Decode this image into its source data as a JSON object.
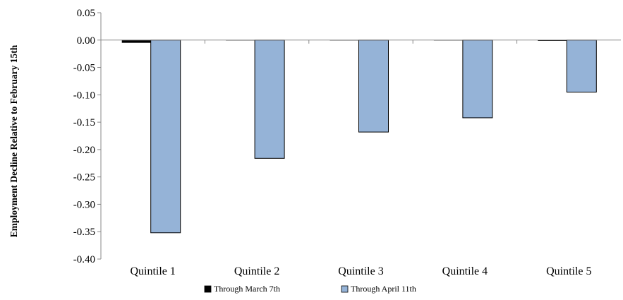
{
  "chart_data": {
    "type": "bar",
    "title": "",
    "xlabel": "",
    "ylabel": "Employment Decline  Relative to February 15th",
    "categories": [
      "Quintile 1",
      "Quintile 2",
      "Quintile 3",
      "Quintile 4",
      "Quintile 5"
    ],
    "series": [
      {
        "name": "Through March 7th",
        "values": [
          -0.005,
          0.0,
          0.0,
          0.0,
          -0.001
        ],
        "color": "#000000"
      },
      {
        "name": "Through April 11th",
        "values": [
          -0.352,
          -0.216,
          -0.168,
          -0.142,
          -0.095
        ],
        "color": "#95b3d7"
      }
    ],
    "ylim": [
      -0.4,
      0.05
    ],
    "yticks": [
      "0.05",
      "0.00",
      "-0.05",
      "-0.10",
      "-0.15",
      "-0.20",
      "-0.25",
      "-0.30",
      "-0.35",
      "-0.40"
    ],
    "grid": false,
    "legend_position": "bottom"
  }
}
